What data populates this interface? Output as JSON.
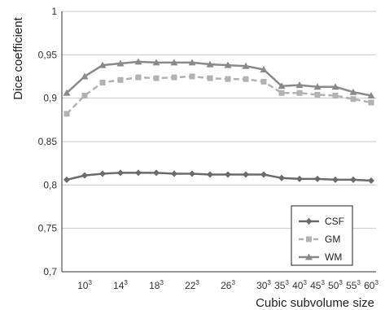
{
  "chart_data": {
    "type": "line",
    "title": "",
    "xlabel": "Cubic subvolume size",
    "ylabel": "Dice coefficient",
    "ylim": [
      0.7,
      1.0
    ],
    "yticks": [
      "0,7",
      "0,75",
      "0,8",
      "0,85",
      "0,9",
      "0,95",
      "1"
    ],
    "grid": "horizontal",
    "legend_position": "bottom-right",
    "x": [
      8,
      10,
      12,
      14,
      16,
      18,
      20,
      22,
      24,
      26,
      28,
      30,
      35,
      40,
      45,
      50,
      55,
      60
    ],
    "xtick_labels": [
      {
        "base": "10",
        "exp": "3"
      },
      {
        "base": "14",
        "exp": "3"
      },
      {
        "base": "18",
        "exp": "3"
      },
      {
        "base": "22",
        "exp": "3"
      },
      {
        "base": "26",
        "exp": "3"
      },
      {
        "base": "30",
        "exp": "3"
      },
      {
        "base": "35",
        "exp": "3"
      },
      {
        "base": "40",
        "exp": "3"
      },
      {
        "base": "45",
        "exp": "3"
      },
      {
        "base": "50",
        "exp": "3"
      },
      {
        "base": "55",
        "exp": "3"
      },
      {
        "base": "60",
        "exp": "3"
      }
    ],
    "series": [
      {
        "name": "CSF",
        "color": "#6b6b6b",
        "marker": "diamond",
        "dash": "solid",
        "values": [
          0.806,
          0.811,
          0.813,
          0.814,
          0.814,
          0.814,
          0.813,
          0.813,
          0.812,
          0.812,
          0.812,
          0.812,
          0.808,
          0.807,
          0.807,
          0.806,
          0.806,
          0.805
        ]
      },
      {
        "name": "GM",
        "color": "#b2b2b2",
        "marker": "square",
        "dash": "dashed",
        "values": [
          0.882,
          0.903,
          0.918,
          0.921,
          0.924,
          0.923,
          0.924,
          0.925,
          0.923,
          0.922,
          0.922,
          0.919,
          0.906,
          0.906,
          0.904,
          0.903,
          0.899,
          0.895
        ]
      },
      {
        "name": "WM",
        "color": "#8a8a8a",
        "marker": "triangle",
        "dash": "solid",
        "values": [
          0.906,
          0.925,
          0.938,
          0.94,
          0.942,
          0.941,
          0.941,
          0.941,
          0.939,
          0.938,
          0.937,
          0.933,
          0.914,
          0.915,
          0.913,
          0.913,
          0.907,
          0.903
        ]
      }
    ]
  }
}
